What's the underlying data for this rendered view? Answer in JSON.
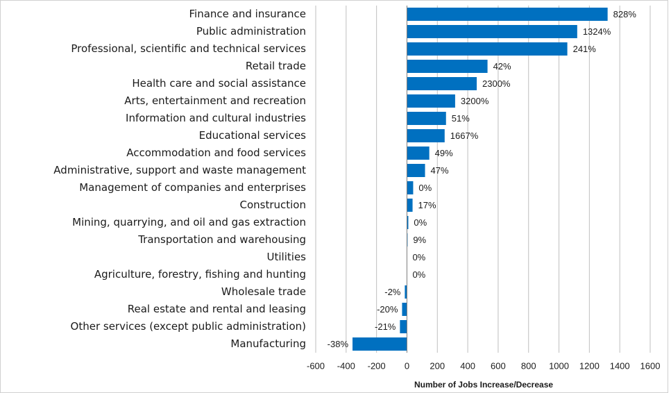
{
  "chart_data": {
    "type": "barh",
    "x_label": "Number of Jobs Increase/Decrease",
    "categories": [
      "Finance and insurance",
      "Public administration",
      "Professional, scientific and technical services",
      "Retail trade",
      "Health care and social assistance",
      "Arts, entertainment and recreation",
      "Information and cultural industries",
      "Educational services",
      "Accommodation and food services",
      "Administrative, support and waste management",
      "Management of companies and enterprises",
      "Construction",
      "Mining, quarrying, and oil and gas extraction",
      "Transportation and warehousing",
      "Utilities",
      "Agriculture, forestry, fishing and hunting",
      "Wholesale trade",
      "Real estate and rental and leasing",
      "Other services (except public administration)",
      "Manufacturing"
    ],
    "values": [
      1320,
      1120,
      1055,
      530,
      459,
      317,
      257,
      248,
      147,
      119,
      41,
      37,
      9,
      4,
      0,
      0,
      -14,
      -32,
      -46,
      -358
    ],
    "value_labels": [
      "828%",
      "1324%",
      "241%",
      "42%",
      "2300%",
      "3200%",
      "51%",
      "1667%",
      "49%",
      "47%",
      "0%",
      "17%",
      "0%",
      "9%",
      "0%",
      "0%",
      "-2%",
      "-20%",
      "-21%",
      "-38%"
    ],
    "color": "#0070c0",
    "xlim": [
      -600,
      1600
    ],
    "xticks": [
      -600,
      -400,
      -200,
      0,
      200,
      400,
      600,
      800,
      1000,
      1200,
      1400,
      1600
    ],
    "grid": true
  }
}
